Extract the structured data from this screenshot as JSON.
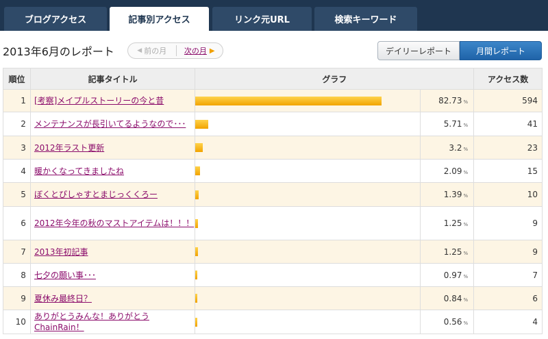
{
  "tabs": [
    {
      "label": "ブログアクセス",
      "active": false
    },
    {
      "label": "記事別アクセス",
      "active": true
    },
    {
      "label": "リンク元URL",
      "active": false
    },
    {
      "label": "検索キーワード",
      "active": false
    }
  ],
  "report": {
    "title": "2013年6月のレポート",
    "prev_label": "前の月",
    "next_label": "次の月"
  },
  "report_switch": {
    "daily_label": "デイリーレポート",
    "monthly_label": "月間レポート",
    "selected": "monthly"
  },
  "table": {
    "headers": {
      "rank": "順位",
      "title": "記事タイトル",
      "graph": "グラフ",
      "access": "アクセス数"
    },
    "percent_unit": "%",
    "rows": [
      {
        "rank": "1",
        "title": "[考察]メイプルストーリーの今と昔",
        "percent": "82.73",
        "access": "594",
        "share": 0.8273
      },
      {
        "rank": "2",
        "title": "メンテナンスが長引いてるようなので･･･",
        "percent": "5.71",
        "access": "41",
        "share": 0.0571
      },
      {
        "rank": "3",
        "title": "2012年ラスト更新",
        "percent": "3.2",
        "access": "23",
        "share": 0.032
      },
      {
        "rank": "4",
        "title": "暖かくなってきましたね",
        "percent": "2.09",
        "access": "15",
        "share": 0.0209
      },
      {
        "rank": "5",
        "title": "ぼくとぴしゃすとまじっくくろー",
        "percent": "1.39",
        "access": "10",
        "share": 0.0139
      },
      {
        "rank": "6",
        "title": "2012年今年の秋のマストアイテムは！！！",
        "percent": "1.25",
        "access": "9",
        "share": 0.0125
      },
      {
        "rank": "7",
        "title": "2013年初記事",
        "percent": "1.25",
        "access": "9",
        "share": 0.0125
      },
      {
        "rank": "8",
        "title": "七夕の願い事･･･",
        "percent": "0.97",
        "access": "7",
        "share": 0.0097
      },
      {
        "rank": "9",
        "title": "夏休み最終日？",
        "percent": "0.84",
        "access": "6",
        "share": 0.0084
      },
      {
        "rank": "10",
        "title": "ありがとうみんな！ありがとうChainRain！",
        "percent": "0.56",
        "access": "4",
        "share": 0.0056
      }
    ]
  },
  "colors": {
    "nav_bg": "#1f3650",
    "accent": "#1f63a8",
    "bar": "#f2a300",
    "link": "#8b0c6b",
    "row_alt": "#fdf5e4"
  }
}
